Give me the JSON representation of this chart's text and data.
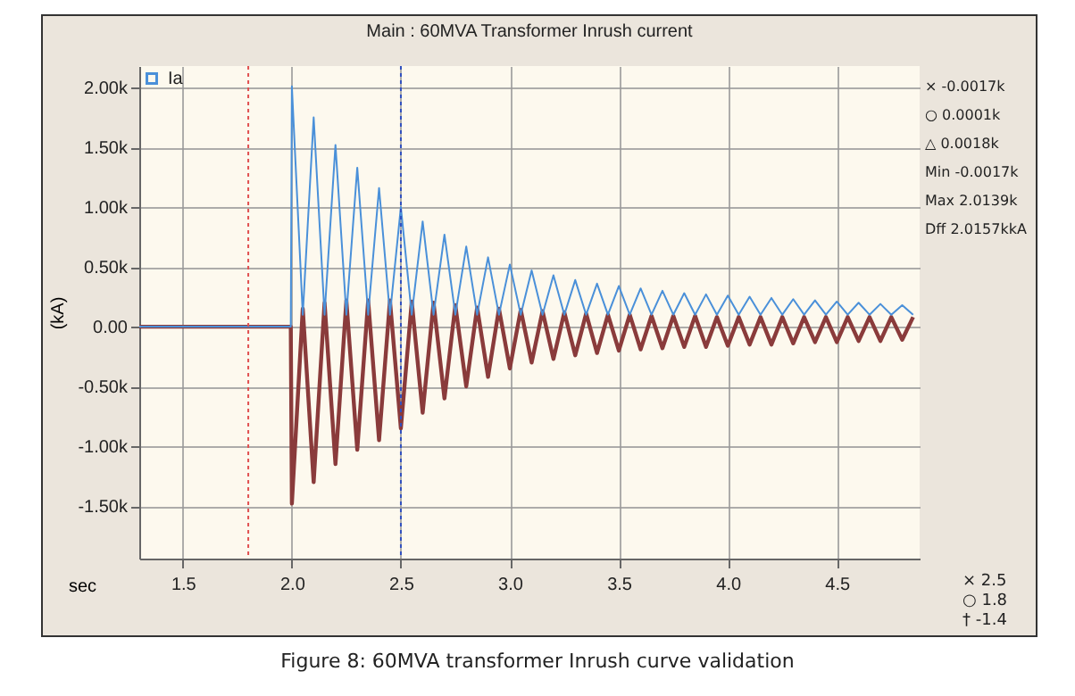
{
  "chart_data": {
    "type": "line",
    "title": "Main : 60MVA Transformer Inrush current",
    "xlabel": "sec",
    "ylabel": "(kA)",
    "xlim": [
      1.3,
      4.88
    ],
    "ylim": [
      -1.94,
      2.18
    ],
    "xticks": [
      1.5,
      {
        "value": 2,
        "label": "2.0"
      },
      2.5,
      {
        "value": 3,
        "label": "3.0"
      },
      3.5,
      {
        "value": 4,
        "label": "4.0"
      },
      4.5
    ],
    "yticks": [
      {
        "value": 2,
        "label": "2.00k"
      },
      {
        "value": 1.5,
        "label": "1.50k"
      },
      {
        "value": 1,
        "label": "1.00k"
      },
      {
        "value": 0.5,
        "label": "0.50k"
      },
      {
        "value": 0,
        "label": "0.00"
      },
      {
        "value": -0.5,
        "label": "-0.50k"
      },
      {
        "value": -1,
        "label": "-1.00k"
      },
      {
        "value": -1.5,
        "label": "-1.50k"
      }
    ],
    "grid": true,
    "legend": "top left",
    "line_style": "solid",
    "marker": "none",
    "series": [
      {
        "color": "#8a3b3b",
        "x": [
          1.3,
          1.995,
          2.0,
          2.05,
          2.1,
          2.15,
          2.2,
          2.25,
          2.3,
          2.35,
          2.4,
          2.45,
          2.5,
          2.55,
          2.6,
          2.65,
          2.7,
          2.75,
          2.8,
          2.85,
          2.9,
          2.95,
          3.0,
          3.05,
          3.1,
          3.15,
          3.2,
          3.25,
          3.3,
          3.35,
          3.4,
          3.45,
          3.5,
          3.55,
          3.6,
          3.65,
          3.7,
          3.75,
          3.8,
          3.85,
          3.9,
          3.95,
          4.0,
          4.05,
          4.1,
          4.15,
          4.2,
          4.25,
          4.3,
          4.35,
          4.4,
          4.45,
          4.5,
          4.55,
          4.6,
          4.65,
          4.7,
          4.75,
          4.8,
          4.85
        ],
        "values": [
          0,
          0,
          -1.48,
          0.15,
          -1.3,
          0.2,
          -1.15,
          0.22,
          -1.03,
          0.22,
          -0.95,
          0.22,
          -0.85,
          0.21,
          -0.72,
          0.2,
          -0.6,
          0.18,
          -0.5,
          0.16,
          -0.42,
          0.15,
          -0.35,
          0.14,
          -0.3,
          0.13,
          -0.27,
          0.12,
          -0.24,
          0.11,
          -0.22,
          0.1,
          -0.2,
          0.1,
          -0.19,
          0.09,
          -0.18,
          0.09,
          -0.17,
          0.09,
          -0.17,
          0.08,
          -0.16,
          0.08,
          -0.15,
          0.08,
          -0.15,
          0.08,
          -0.14,
          0.08,
          -0.13,
          0.08,
          -0.13,
          0.08,
          -0.12,
          0.08,
          -0.12,
          0.08,
          -0.11,
          0.08
        ]
      },
      {
        "name": "Ia",
        "color": "#4a90d9",
        "x": [
          1.3,
          1.995,
          2.0,
          2.05,
          2.1,
          2.15,
          2.2,
          2.25,
          2.3,
          2.35,
          2.4,
          2.45,
          2.5,
          2.55,
          2.6,
          2.65,
          2.7,
          2.75,
          2.8,
          2.85,
          2.9,
          2.95,
          3.0,
          3.05,
          3.1,
          3.15,
          3.2,
          3.25,
          3.3,
          3.35,
          3.4,
          3.45,
          3.5,
          3.55,
          3.6,
          3.65,
          3.7,
          3.75,
          3.8,
          3.85,
          3.9,
          3.95,
          4.0,
          4.05,
          4.1,
          4.15,
          4.2,
          4.25,
          4.3,
          4.35,
          4.4,
          4.45,
          4.5,
          4.55,
          4.6,
          4.65,
          4.7,
          4.75,
          4.8,
          4.85
        ],
        "values": [
          0,
          0,
          2.01,
          0.1,
          1.75,
          0.1,
          1.52,
          0.1,
          1.33,
          0.1,
          1.16,
          0.1,
          1.0,
          0.1,
          0.88,
          0.1,
          0.77,
          0.1,
          0.67,
          0.1,
          0.58,
          0.1,
          0.52,
          0.1,
          0.47,
          0.1,
          0.43,
          0.1,
          0.39,
          0.1,
          0.36,
          0.1,
          0.34,
          0.1,
          0.32,
          0.1,
          0.3,
          0.1,
          0.28,
          0.1,
          0.27,
          0.1,
          0.26,
          0.1,
          0.25,
          0.1,
          0.24,
          0.1,
          0.23,
          0.1,
          0.22,
          0.1,
          0.21,
          0.1,
          0.2,
          0.1,
          0.19,
          0.1,
          0.18,
          0.1
        ]
      }
    ],
    "ref_lines": [
      {
        "axis": "x",
        "value": 1.8,
        "color": "#e05050",
        "line_style": "dotted"
      },
      {
        "axis": "x",
        "value": 2.5,
        "color": "#3050c0",
        "line_style": "dotted"
      }
    ],
    "annotations": [
      "× -0.0017k",
      "○ 0.0001k",
      "△ 0.0018k",
      "Min -0.0017k",
      "Max 2.0139k",
      "Dff 2.0157kkA",
      "× 2.5",
      "○ 1.8",
      "† -1.4",
      "Figure 8: 60MVA transformer Inrush curve validation"
    ]
  }
}
